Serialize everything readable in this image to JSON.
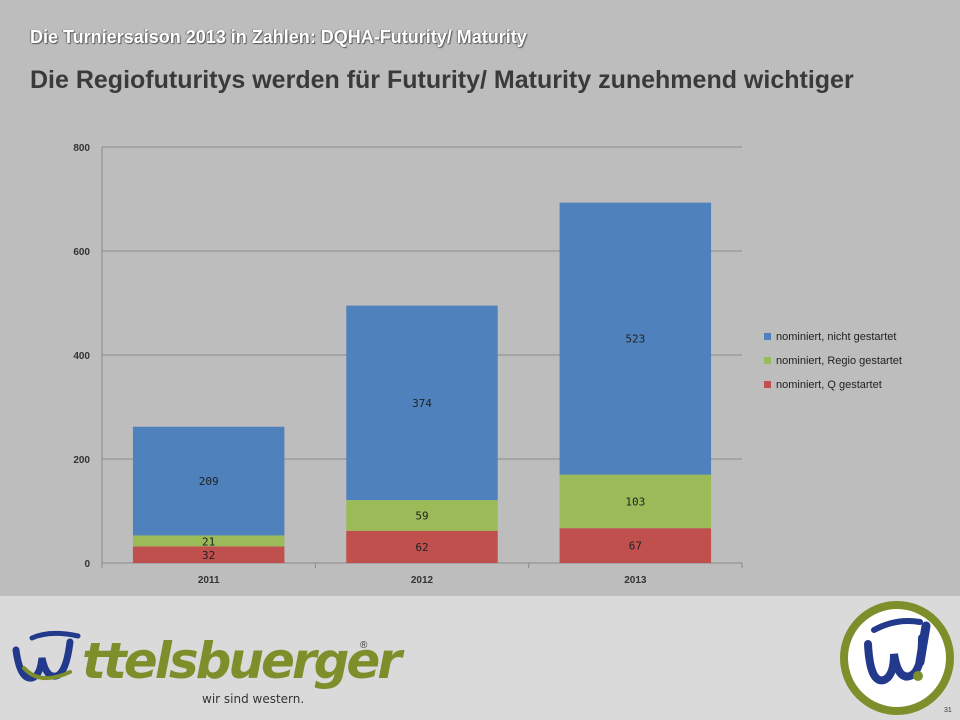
{
  "slide": {
    "header_title": "Die Turniersaison 2013 in Zahlen: DQHA-Futurity/  Maturity",
    "headline": "Die Regiofuturitys werden für Futurity/ Maturity zunehmend wichtiger",
    "page_number": "31"
  },
  "logo": {
    "wordmark": "ttelsbuerger",
    "registered": "®",
    "tagline": "wir sind western."
  },
  "colors": {
    "series_blue": "#4f81bd",
    "series_green": "#9bbb59",
    "series_red": "#c0504d",
    "logo_green": "#7d8f2a",
    "logo_blue": "#233a8c"
  },
  "chart_data": {
    "type": "bar",
    "stacked": true,
    "categories": [
      "2011",
      "2012",
      "2013"
    ],
    "series": [
      {
        "name": "nominiert, Q gestartet",
        "values": [
          32,
          62,
          67
        ],
        "color": "#c0504d"
      },
      {
        "name": "nominiert, Regio gestartet",
        "values": [
          21,
          59,
          103
        ],
        "color": "#9bbb59"
      },
      {
        "name": "nominiert, nicht gestartet",
        "values": [
          209,
          374,
          523
        ],
        "color": "#4f81bd"
      }
    ],
    "ylim": [
      0,
      800
    ],
    "yticks": [
      0,
      200,
      400,
      600,
      800
    ],
    "grid": true,
    "legend_position": "right"
  }
}
